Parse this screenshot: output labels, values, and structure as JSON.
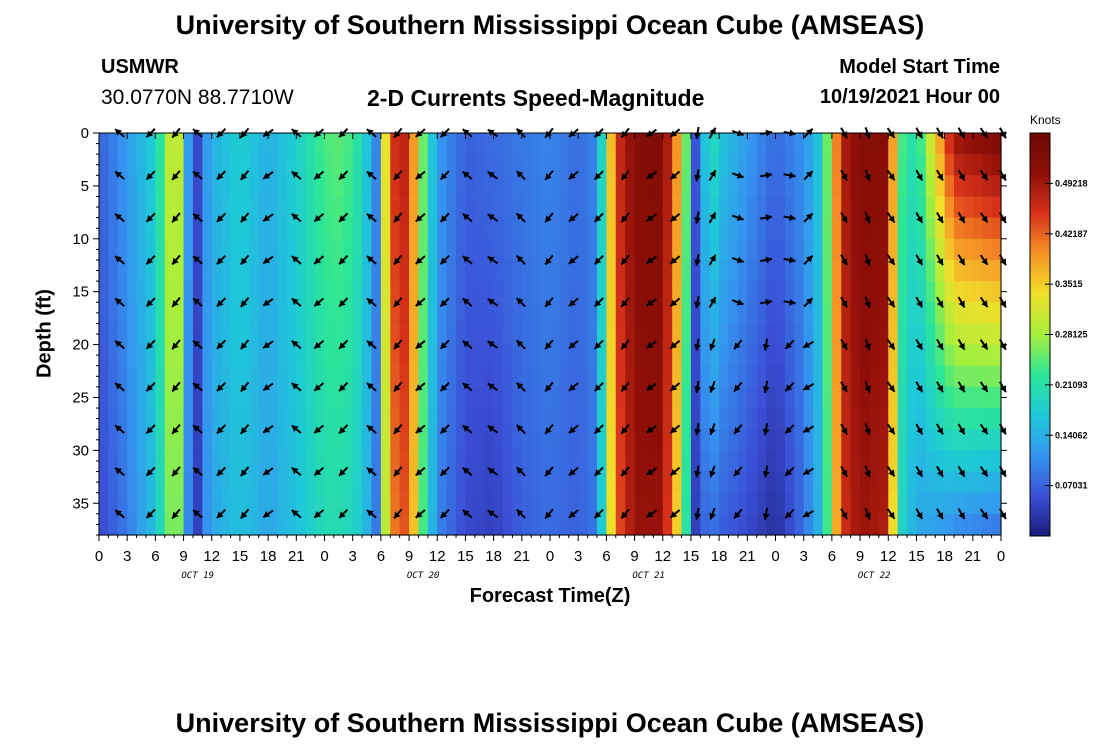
{
  "header": {
    "title": "University of Southern Mississippi Ocean Cube (AMSEAS)",
    "station": "USMWR",
    "coordinates": "30.0770N  88.7710W",
    "subtitle": "2-D Currents Speed-Magnitude",
    "start_label": "Model Start Time",
    "start_value": "10/19/2021 Hour 00"
  },
  "footer": {
    "title": "University of Southern Mississippi Ocean Cube (AMSEAS)"
  },
  "chart_data": {
    "type": "heatmap",
    "title": "2-D Currents Speed-Magnitude",
    "xlabel": "Forecast Time(Z)",
    "ylabel": "Depth (ft)",
    "x_tick_labels": [
      "0",
      "3",
      "6",
      "9",
      "12",
      "15",
      "18",
      "21",
      "0",
      "3",
      "6",
      "9",
      "12",
      "15",
      "18",
      "21",
      "0",
      "3",
      "6",
      "9",
      "12",
      "15",
      "18",
      "21",
      "0",
      "3",
      "6",
      "9",
      "12",
      "15",
      "18",
      "21",
      "0"
    ],
    "x_range_hours": [
      0,
      96
    ],
    "date_labels": [
      {
        "label": "OCT 19",
        "hour": 10.5
      },
      {
        "label": "OCT 20",
        "hour": 34.5
      },
      {
        "label": "OCT 21",
        "hour": 58.5
      },
      {
        "label": "OCT 22",
        "hour": 82.5
      }
    ],
    "y_ticks": [
      0,
      5,
      10,
      15,
      20,
      25,
      30,
      35
    ],
    "y_range_ft": [
      0,
      38
    ],
    "y_inverted": true,
    "colorbar": {
      "label": "Knots",
      "range": [
        0,
        0.5625
      ],
      "ticks": [
        0.07031,
        0.14062,
        0.21093,
        0.28125,
        0.3515,
        0.42187,
        0.49218
      ],
      "tick_labels": [
        "0.07031",
        "0.14062",
        "0.21093",
        "0.28125",
        "0.3515",
        "0.42187",
        "0.49218"
      ],
      "colors": [
        "#1a1d7a",
        "#3b4fd6",
        "#3596f0",
        "#1ec9d8",
        "#2ce696",
        "#a6ef3c",
        "#f0e02a",
        "#f79426",
        "#d8321a",
        "#8f0f08",
        "#6b0a04"
      ]
    },
    "speed_profile_surface": [
      [
        0,
        0.07
      ],
      [
        3,
        0.12
      ],
      [
        6,
        0.18
      ],
      [
        7.5,
        0.3
      ],
      [
        8.5,
        0.3
      ],
      [
        9.5,
        0.12
      ],
      [
        10.5,
        0.05
      ],
      [
        11,
        0.1
      ],
      [
        12,
        0.14
      ],
      [
        15,
        0.18
      ],
      [
        18,
        0.14
      ],
      [
        21,
        0.18
      ],
      [
        24,
        0.24
      ],
      [
        26,
        0.25
      ],
      [
        28,
        0.2
      ],
      [
        29.5,
        0.1
      ],
      [
        31,
        0.45
      ],
      [
        33,
        0.48
      ],
      [
        34,
        0.3
      ],
      [
        36,
        0.12
      ],
      [
        39,
        0.07
      ],
      [
        42,
        0.08
      ],
      [
        45,
        0.09
      ],
      [
        48,
        0.1
      ],
      [
        51,
        0.08
      ],
      [
        53,
        0.1
      ],
      [
        55,
        0.45
      ],
      [
        57,
        0.52
      ],
      [
        60,
        0.53
      ],
      [
        62,
        0.35
      ],
      [
        63.5,
        0.06
      ],
      [
        65,
        0.22
      ],
      [
        66,
        0.17
      ],
      [
        69,
        0.12
      ],
      [
        72,
        0.08
      ],
      [
        75,
        0.11
      ],
      [
        77,
        0.18
      ],
      [
        79,
        0.48
      ],
      [
        81,
        0.52
      ],
      [
        84,
        0.52
      ],
      [
        85,
        0.25
      ],
      [
        87,
        0.2
      ],
      [
        89,
        0.35
      ],
      [
        91,
        0.5
      ],
      [
        96,
        0.54
      ]
    ],
    "speed_profile_bottom": [
      [
        0,
        0.05
      ],
      [
        3,
        0.09
      ],
      [
        6,
        0.16
      ],
      [
        7.5,
        0.26
      ],
      [
        8.5,
        0.26
      ],
      [
        9.5,
        0.1
      ],
      [
        10.5,
        0.04
      ],
      [
        11,
        0.09
      ],
      [
        12,
        0.13
      ],
      [
        15,
        0.16
      ],
      [
        18,
        0.13
      ],
      [
        21,
        0.16
      ],
      [
        24,
        0.2
      ],
      [
        26,
        0.2
      ],
      [
        28,
        0.17
      ],
      [
        29.5,
        0.09
      ],
      [
        31,
        0.4
      ],
      [
        33,
        0.44
      ],
      [
        34,
        0.28
      ],
      [
        36,
        0.1
      ],
      [
        39,
        0.05
      ],
      [
        42,
        0.04
      ],
      [
        45,
        0.07
      ],
      [
        48,
        0.08
      ],
      [
        51,
        0.07
      ],
      [
        53,
        0.09
      ],
      [
        55,
        0.42
      ],
      [
        57,
        0.5
      ],
      [
        60,
        0.5
      ],
      [
        62,
        0.3
      ],
      [
        63.5,
        0.04
      ],
      [
        65,
        0.09
      ],
      [
        66,
        0.07
      ],
      [
        69,
        0.05
      ],
      [
        72,
        0.02
      ],
      [
        75,
        0.08
      ],
      [
        77,
        0.16
      ],
      [
        79,
        0.45
      ],
      [
        81,
        0.5
      ],
      [
        84,
        0.48
      ],
      [
        85,
        0.2
      ],
      [
        87,
        0.13
      ],
      [
        89,
        0.12
      ],
      [
        91,
        0.1
      ],
      [
        96,
        0.08
      ]
    ],
    "vector_times_hours": [
      2.2,
      5.5,
      8.2,
      10.5,
      13,
      15.5,
      18,
      21,
      23.4,
      26,
      29,
      31.8,
      34.2,
      36.8,
      39.2,
      41.9,
      44.9,
      47.9,
      50.5,
      53.2,
      56,
      58.8,
      61.3,
      63.7,
      65.3,
      68,
      71,
      73.5,
      75.5,
      79.3,
      81.8,
      84.3,
      87.3,
      89.5,
      91.8,
      94.2,
      96.2
    ],
    "vector_depths_ft": [
      0,
      4,
      8,
      12,
      16,
      20,
      24,
      28,
      32,
      36
    ],
    "vector_direction_deg_by_time": [
      220,
      135,
      130,
      220,
      135,
      130,
      145,
      220,
      140,
      135,
      220,
      130,
      140,
      135,
      220,
      215,
      225,
      130,
      140,
      135,
      130,
      145,
      140,
      100,
      110,
      130,
      100,
      135,
      150,
      60,
      70,
      55,
      60,
      60,
      60,
      55,
      60
    ],
    "vector_direction_deg_upper": [
      220,
      135,
      130,
      220,
      135,
      130,
      145,
      220,
      140,
      135,
      220,
      130,
      140,
      135,
      220,
      215,
      225,
      130,
      140,
      135,
      130,
      145,
      140,
      100,
      300,
      20,
      350,
      10,
      315,
      60,
      70,
      55,
      60,
      60,
      60,
      55,
      60
    ]
  }
}
